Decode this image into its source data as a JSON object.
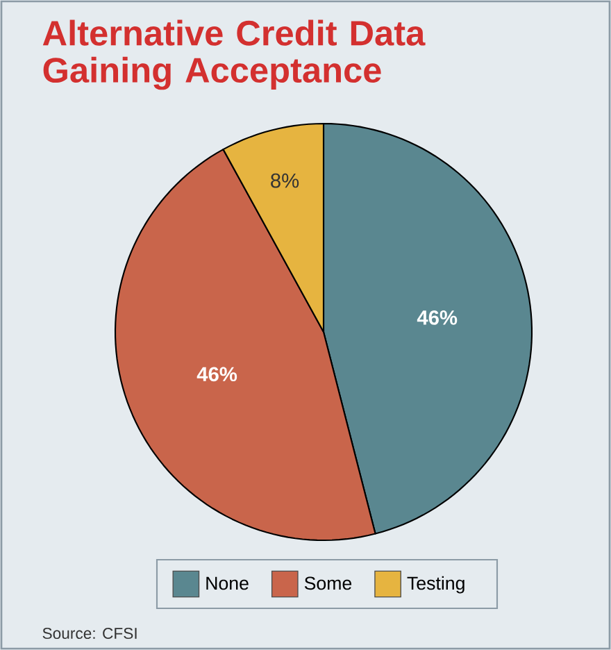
{
  "chart_data": {
    "type": "pie",
    "title": "Alternative Credit Data Gaining Acceptance",
    "categories": [
      "None",
      "Some",
      "Testing"
    ],
    "values": [
      46,
      46,
      8
    ],
    "value_labels": [
      "46%",
      "46%",
      "8%"
    ],
    "colors": [
      "#5a8790",
      "#c9654b",
      "#e6b440"
    ],
    "legend": "bottom",
    "annotations": [
      "Source: CFSI"
    ]
  }
}
